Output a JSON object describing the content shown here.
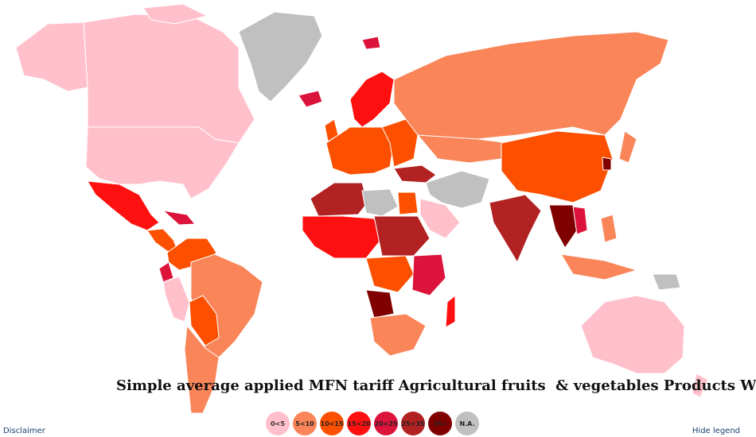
{
  "title": "Simple average applied MFN tariff Agricultural fruits  & vegetables Products WTO",
  "links": {
    "disclaimer": "Disclaimer",
    "hide_legend": "Hide legend"
  },
  "colors": {
    "c0_5": "#ffc0cb",
    "c5_10": "#f98559",
    "c10_15": "#fc5000",
    "c15_20": "#ff1010",
    "c20_25": "#dc143c",
    "c25_35": "#b22222",
    "c35": "#800000",
    "na": "#c0c0c0"
  },
  "legend": [
    {
      "label": "0<5",
      "color": "#ffc0cb",
      "text_color": "#333333"
    },
    {
      "label": "5<10",
      "color": "#f98559",
      "text_color": "#222222"
    },
    {
      "label": "10<15",
      "color": "#fc5000",
      "text_color": "#222222"
    },
    {
      "label": "15<20",
      "color": "#ff1010",
      "text_color": "#222222"
    },
    {
      "label": "20<25",
      "color": "#dc143c",
      "text_color": "#222222"
    },
    {
      "label": "25<35",
      "color": "#b22222",
      "text_color": "#222222"
    },
    {
      "label": "35<",
      "color": "#800000",
      "text_color": "#222222"
    },
    {
      "label": "N.A.",
      "color": "#c0c0c0",
      "text_color": "#222222"
    }
  ]
}
